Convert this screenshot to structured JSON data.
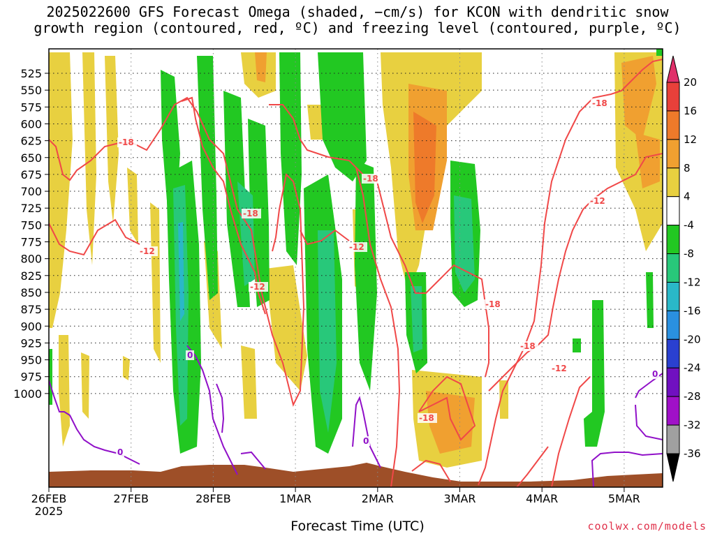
{
  "title": {
    "line1": "2025022600 GFS Forecast Omega (shaded, −cm/s) for KCON with dendritic snow",
    "line2": "growth region (contoured, red, ºC) and freezing level (contoured, purple, ºC)"
  },
  "chart_data": {
    "type": "heatmap",
    "xlabel": "Forecast Time (UTC)",
    "x_tick_labels": [
      "26FEB",
      "27FEB",
      "28FEB",
      "1MAR",
      "2MAR",
      "3MAR",
      "4MAR",
      "5MAR"
    ],
    "x_year_label": "2025",
    "y_tick_labels": [
      "525",
      "550",
      "575",
      "600",
      "625",
      "650",
      "675",
      "700",
      "725",
      "750",
      "775",
      "800",
      "825",
      "850",
      "875",
      "900",
      "925",
      "950",
      "975",
      "1000"
    ],
    "y_axis_inverted": true,
    "colorbar": {
      "labels": [
        "20",
        "16",
        "12",
        "8",
        "4",
        "-4",
        "-8",
        "-12",
        "-16",
        "-20",
        "-24",
        "-28",
        "-32",
        "-36"
      ],
      "colors": [
        "#e0306a",
        "#e8403a",
        "#ee7a2a",
        "#f0a030",
        "#e8d040",
        "#ffffff",
        "#22c822",
        "#28c87a",
        "#2ab8c8",
        "#2a90e0",
        "#2a40d0",
        "#7010c0",
        "#a010c8",
        "#a0a0a0",
        "#000000"
      ]
    },
    "contours": {
      "dendritic_labels": [
        "-18",
        "-12"
      ],
      "freezing_label": "0"
    },
    "grid": true,
    "legend": "colorbar-right"
  },
  "credit": "coolwx.com/models"
}
